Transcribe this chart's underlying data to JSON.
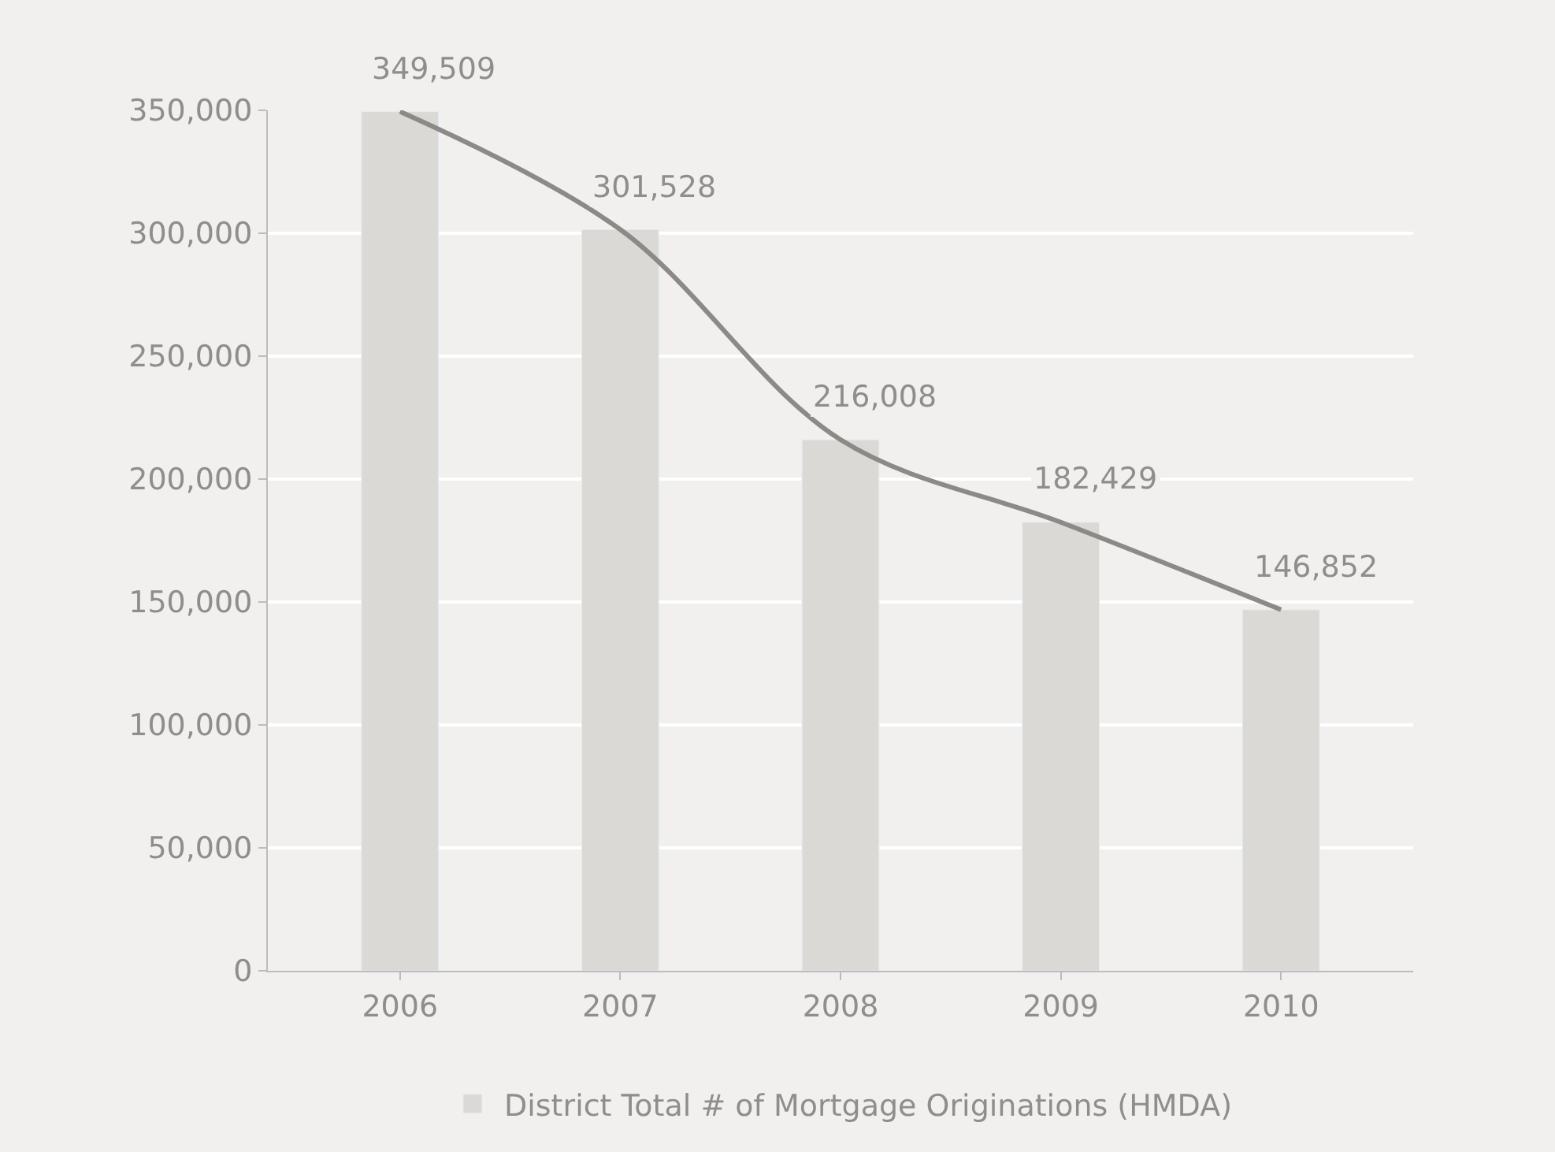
{
  "chart_data": {
    "type": "bar",
    "categories": [
      "2006",
      "2007",
      "2008",
      "2009",
      "2010"
    ],
    "series": [
      {
        "name": "District Total # of Mortgage Originations (HMDA)",
        "color": "#dad9d6",
        "values": [
          349509,
          301528,
          216008,
          182429,
          146852
        ],
        "value_labels": [
          "349,509",
          "301,528",
          "216,008",
          "182,429",
          "146,852"
        ]
      },
      {
        "type": "line",
        "color": "#8c8a87",
        "values": [
          349509,
          301528,
          216008,
          182429,
          146852
        ]
      }
    ],
    "ylim": [
      0,
      350000
    ],
    "yticks": [
      {
        "value": 0,
        "label": "0"
      },
      {
        "value": 50000,
        "label": "50,000"
      },
      {
        "value": 100000,
        "label": "100,000"
      },
      {
        "value": 150000,
        "label": "150,000"
      },
      {
        "value": 200000,
        "label": "200,000"
      },
      {
        "value": 250000,
        "label": "250,000"
      },
      {
        "value": 300000,
        "label": "300,000"
      },
      {
        "value": 350000,
        "label": "350,000"
      }
    ],
    "grid": "y",
    "legend": "bottom",
    "marker": "none",
    "line_style": "solid"
  }
}
